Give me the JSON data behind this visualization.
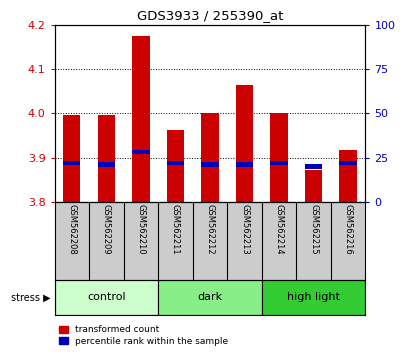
{
  "title": "GDS3933 / 255390_at",
  "samples": [
    "GSM562208",
    "GSM562209",
    "GSM562210",
    "GSM562211",
    "GSM562212",
    "GSM562213",
    "GSM562214",
    "GSM562215",
    "GSM562216"
  ],
  "transformed_counts": [
    3.997,
    3.997,
    4.175,
    3.963,
    4.0,
    4.065,
    4.0,
    3.872,
    3.918
  ],
  "percentile_ranks": [
    22,
    21,
    28,
    22,
    21,
    21,
    22,
    20,
    22
  ],
  "ylim_left": [
    3.8,
    4.2
  ],
  "ylim_right": [
    0,
    100
  ],
  "yticks_left": [
    3.8,
    3.9,
    4.0,
    4.1,
    4.2
  ],
  "yticks_right": [
    0,
    25,
    50,
    75,
    100
  ],
  "bar_color_red": "#cc0000",
  "bar_color_blue": "#0000bb",
  "bar_width": 0.5,
  "groups": [
    {
      "label": "control",
      "indices": [
        0,
        1,
        2
      ],
      "color": "#ccffcc"
    },
    {
      "label": "dark",
      "indices": [
        3,
        4,
        5
      ],
      "color": "#88ee88"
    },
    {
      "label": "high light",
      "indices": [
        6,
        7,
        8
      ],
      "color": "#33cc33"
    }
  ],
  "stress_label": "stress",
  "legend_red": "transformed count",
  "legend_blue": "percentile rank within the sample",
  "grid_color": "black",
  "axis_bg": "white",
  "label_area_bg": "#cccccc",
  "left_ycolor": "#cc0000",
  "right_ycolor": "#0000bb"
}
